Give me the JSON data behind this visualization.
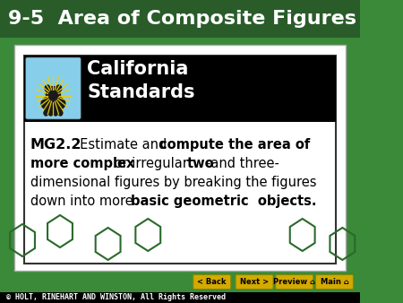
{
  "title": "9-5  Area of Composite Figures",
  "title_bg": "#2a5c2a",
  "title_color": "#ffffff",
  "title_fontsize": 16,
  "main_bg": "#ffffff",
  "outer_bg": "#3a8a3a",
  "header_bg": "#000000",
  "header_text": "California\nStandards",
  "header_text_color": "#ffffff",
  "header_fontsize": 15,
  "body_fontsize": 10.5,
  "footer_bg": "#000000",
  "footer_text": "© HOLT, RINEHART AND WINSTON, All Rights Reserved",
  "footer_text_color": "#ffffff",
  "footer_fontsize": 6,
  "button_color": "#d4aa00",
  "button_text_color": "#000000",
  "buttons": [
    "< Back",
    "Next >",
    "Preview ⌂",
    "Main ⌂"
  ],
  "button_fontsize": 6,
  "icon_bg_color": "#87ceeb",
  "hexagon_color": "#2d6e2d",
  "ray_color": "#f0d000",
  "bear_color": "#1a1a1a"
}
